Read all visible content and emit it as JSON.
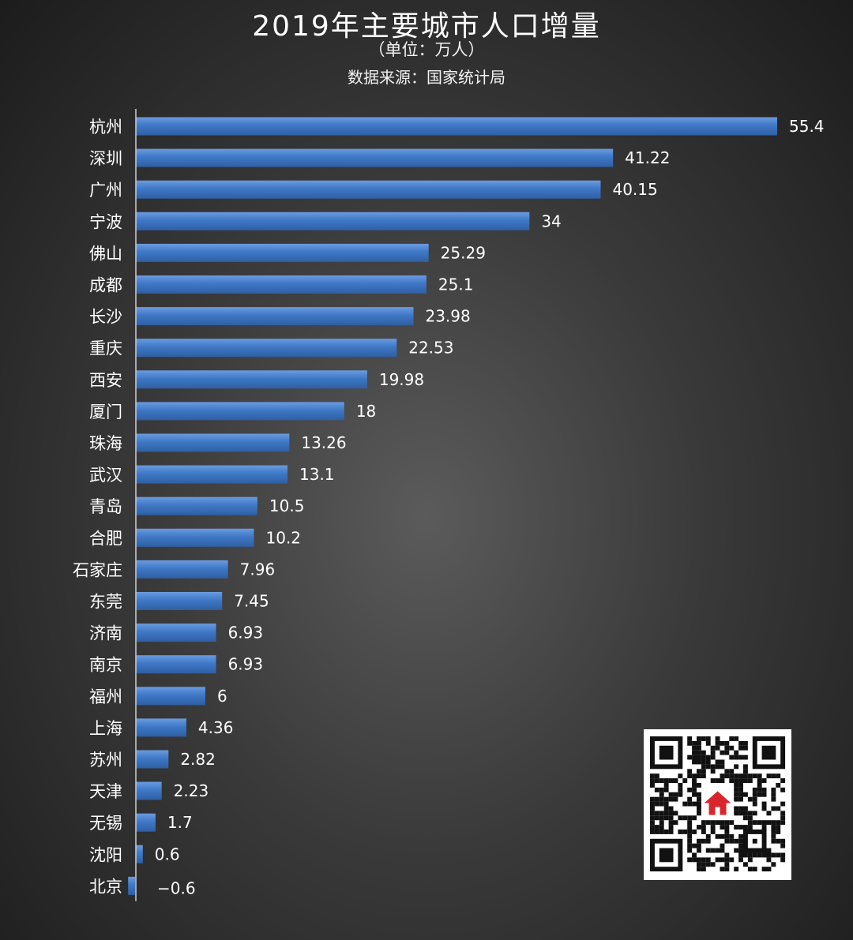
{
  "header": {
    "title": "2019年主要城市人口增量",
    "unit": "（单位：万人）",
    "source": "数据来源：国家统计局"
  },
  "colors": {
    "bar": "#3f78c6",
    "bar_highlight": "#6a9be0",
    "axis": "#cfcfcf",
    "text": "#ffffff"
  },
  "chart_data": {
    "type": "bar",
    "orientation": "horizontal",
    "title": "2019年主要城市人口增量",
    "subtitle": "（单位：万人）",
    "note": "数据来源：国家统计局",
    "categories": [
      "杭州",
      "深圳",
      "广州",
      "宁波",
      "佛山",
      "成都",
      "长沙",
      "重庆",
      "西安",
      "厦门",
      "珠海",
      "武汉",
      "青岛",
      "合肥",
      "石家庄",
      "东莞",
      "济南",
      "南京",
      "福州",
      "上海",
      "苏州",
      "天津",
      "无锡",
      "沈阳",
      "北京"
    ],
    "values": [
      55.4,
      41.22,
      40.15,
      34,
      25.29,
      25.1,
      23.98,
      22.53,
      19.98,
      18,
      13.26,
      13.1,
      10.5,
      10.2,
      7.96,
      7.45,
      6.93,
      6.93,
      6,
      4.36,
      2.82,
      2.23,
      1.7,
      0.6,
      -0.6
    ],
    "value_labels": [
      "55.4",
      "41.22",
      "40.15",
      "34",
      "25.29",
      "25.1",
      "23.98",
      "22.53",
      "19.98",
      "18",
      "13.26",
      "13.1",
      "10.5",
      "10.2",
      "7.96",
      "7.45",
      "6.93",
      "6.93",
      "6",
      "4.36",
      "2.82",
      "2.23",
      "1.7",
      "0.6",
      "−0.6"
    ],
    "xlim": [
      -0.6,
      55.4
    ],
    "grid": false,
    "legend": "none"
  },
  "qr_icon": "qr-code-icon"
}
